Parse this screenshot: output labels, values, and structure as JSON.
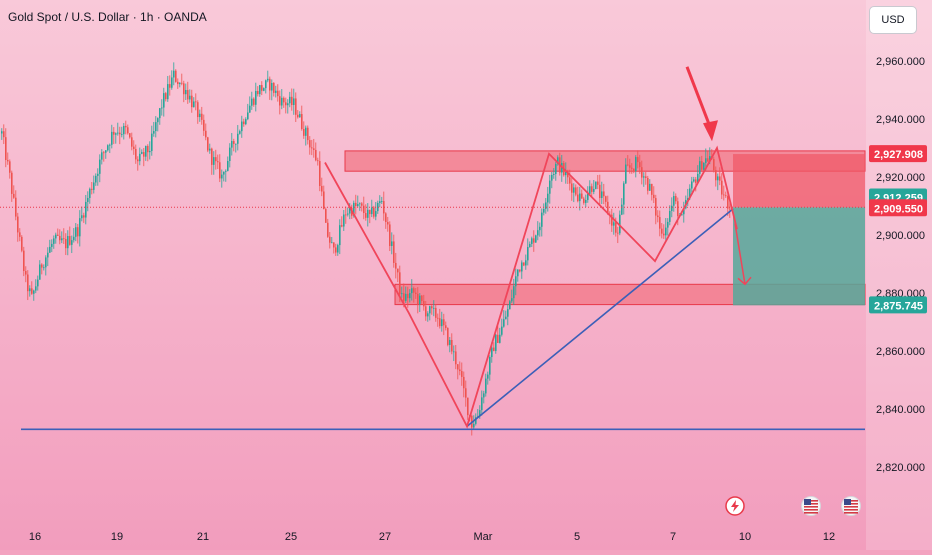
{
  "header": {
    "title": "Gold Spot / U.S. Dollar · 1h · OANDA",
    "currency": "USD"
  },
  "colors": {
    "background_top": "#f9c9d9",
    "background_bottom": "#f29dbd",
    "up_candle": "#26a69a",
    "down_candle": "#ef5350",
    "pattern_line": "#f0455a",
    "trend_line": "#3b5fb8",
    "zone_fill": "#f0606e",
    "target_fill": "#55a89a",
    "stop_fill": "#f05a68",
    "arrow": "#f0384b"
  },
  "chart_data": {
    "type": "candlestick",
    "title": "Gold Spot / U.S. Dollar · 1h · OANDA",
    "ylabel": "",
    "y_axis_side": "right",
    "ylim": [
      2810,
      2975
    ],
    "y_ticks": [
      2820,
      2840,
      2860,
      2880,
      2900,
      2920,
      2940,
      2960
    ],
    "y_tick_labels": [
      "2,820.000",
      "2,840.000",
      "2,860.000",
      "2,880.000",
      "2,900.000",
      "2,920.000",
      "2,940.000",
      "2,960.000"
    ],
    "x_ticks": [
      {
        "index": 17,
        "label": "16"
      },
      {
        "index": 58,
        "label": "19"
      },
      {
        "index": 101,
        "label": "21"
      },
      {
        "index": 145,
        "label": "25"
      },
      {
        "index": 192,
        "label": "27"
      },
      {
        "index": 241,
        "label": "Mar"
      },
      {
        "index": 288,
        "label": "5"
      },
      {
        "index": 336,
        "label": "7"
      },
      {
        "index": 372,
        "label": "10"
      },
      {
        "index": 414,
        "label": "12"
      }
    ],
    "price_path": [
      [
        0,
        2935
      ],
      [
        4,
        2920
      ],
      [
        8,
        2902
      ],
      [
        12,
        2884
      ],
      [
        15,
        2878
      ],
      [
        20,
        2890
      ],
      [
        26,
        2898
      ],
      [
        32,
        2897
      ],
      [
        38,
        2902
      ],
      [
        44,
        2915
      ],
      [
        50,
        2927
      ],
      [
        56,
        2936
      ],
      [
        62,
        2936
      ],
      [
        68,
        2925
      ],
      [
        74,
        2930
      ],
      [
        80,
        2945
      ],
      [
        86,
        2955
      ],
      [
        92,
        2950
      ],
      [
        98,
        2942
      ],
      [
        104,
        2928
      ],
      [
        110,
        2920
      ],
      [
        116,
        2932
      ],
      [
        122,
        2942
      ],
      [
        128,
        2950
      ],
      [
        134,
        2952
      ],
      [
        140,
        2946
      ],
      [
        146,
        2945
      ],
      [
        152,
        2935
      ],
      [
        158,
        2925
      ],
      [
        162,
        2902
      ],
      [
        166,
        2894
      ],
      [
        172,
        2908
      ],
      [
        178,
        2910
      ],
      [
        184,
        2906
      ],
      [
        190,
        2912
      ],
      [
        196,
        2892
      ],
      [
        200,
        2878
      ],
      [
        206,
        2880
      ],
      [
        212,
        2874
      ],
      [
        218,
        2872
      ],
      [
        222,
        2866
      ],
      [
        228,
        2855
      ],
      [
        232,
        2843
      ],
      [
        235,
        2835
      ],
      [
        238,
        2838
      ],
      [
        242,
        2850
      ],
      [
        246,
        2862
      ],
      [
        250,
        2868
      ],
      [
        254,
        2876
      ],
      [
        258,
        2888
      ],
      [
        264,
        2896
      ],
      [
        270,
        2906
      ],
      [
        274,
        2920
      ],
      [
        278,
        2925
      ],
      [
        284,
        2918
      ],
      [
        290,
        2912
      ],
      [
        296,
        2918
      ],
      [
        302,
        2910
      ],
      [
        308,
        2900
      ],
      [
        312,
        2922
      ],
      [
        318,
        2925
      ],
      [
        324,
        2916
      ],
      [
        330,
        2900
      ],
      [
        336,
        2912
      ],
      [
        340,
        2905
      ],
      [
        344,
        2915
      ],
      [
        350,
        2925
      ],
      [
        354,
        2927
      ],
      [
        358,
        2918
      ],
      [
        362,
        2912
      ],
      [
        364,
        2910
      ]
    ],
    "levels": [
      {
        "price": 2927.908,
        "label": "2,927.908",
        "color": "#f0384b"
      },
      {
        "price": 2912.259,
        "label": "2,912.259",
        "color": "#26a69a"
      },
      {
        "price": 2909.55,
        "label": "2,909.550",
        "color": "#f0384b"
      },
      {
        "price": 2875.745,
        "label": "2,875.745",
        "color": "#26a69a"
      }
    ],
    "zones": [
      {
        "name": "resistance",
        "x0": 172,
        "x1": 432,
        "y0": 2922,
        "y1": 2929
      },
      {
        "name": "support",
        "x0": 197,
        "x1": 432,
        "y0": 2876,
        "y1": 2883
      }
    ],
    "position": {
      "x0": 366,
      "x1": 432,
      "entry": 2909.55,
      "stop": 2927.908,
      "target": 2875.745
    },
    "pattern_path": [
      [
        162,
        2925
      ],
      [
        204,
        2873
      ],
      [
        233,
        2834
      ],
      [
        274,
        2928
      ],
      [
        327,
        2891
      ],
      [
        358,
        2930
      ],
      [
        368,
        2902
      ]
    ],
    "trend_line": [
      [
        233,
        2834
      ],
      [
        366,
        2909
      ]
    ],
    "horizontal_line": {
      "price": 2833,
      "x0": 10,
      "x1": 432
    },
    "signal_arrow": {
      "from": [
        343,
        2958
      ],
      "to": [
        355,
        2933
      ]
    },
    "projection_arrow": {
      "from": [
        367,
        2904
      ],
      "to": [
        372,
        2883
      ]
    },
    "event_icons": [
      {
        "index": 367,
        "type": "lightning-icon"
      },
      {
        "index": 405,
        "type": "us-flag-icon"
      },
      {
        "index": 425,
        "type": "us-flag-icon"
      }
    ]
  }
}
